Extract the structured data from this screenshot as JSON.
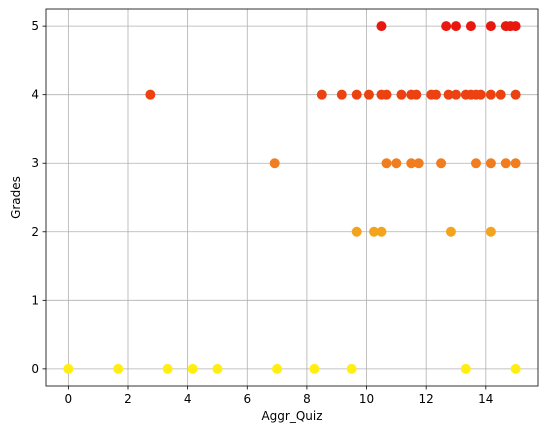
{
  "chart_data": {
    "type": "scatter",
    "xlabel": "Aggr_Quiz",
    "ylabel": "Grades",
    "xlim": [
      -0.75,
      15.75
    ],
    "ylim": [
      -0.25,
      5.25
    ],
    "xticks": [
      0,
      2,
      4,
      6,
      8,
      10,
      12,
      14
    ],
    "yticks": [
      0,
      1,
      2,
      3,
      4,
      5
    ],
    "grid": true,
    "colors": {
      "0": "#ffee0f",
      "2": "#f3a41f",
      "3": "#f07d1f",
      "4": "#ec4212",
      "5": "#e8180f"
    },
    "points": [
      {
        "x": 0.0,
        "y": 0
      },
      {
        "x": 1.67,
        "y": 0
      },
      {
        "x": 3.33,
        "y": 0
      },
      {
        "x": 4.17,
        "y": 0
      },
      {
        "x": 5.0,
        "y": 0
      },
      {
        "x": 7.0,
        "y": 0
      },
      {
        "x": 8.25,
        "y": 0
      },
      {
        "x": 9.5,
        "y": 0
      },
      {
        "x": 13.33,
        "y": 0
      },
      {
        "x": 15.0,
        "y": 0
      },
      {
        "x": 9.67,
        "y": 2
      },
      {
        "x": 10.25,
        "y": 2
      },
      {
        "x": 10.5,
        "y": 2
      },
      {
        "x": 12.83,
        "y": 2
      },
      {
        "x": 14.17,
        "y": 2
      },
      {
        "x": 6.92,
        "y": 3
      },
      {
        "x": 10.67,
        "y": 3
      },
      {
        "x": 11.0,
        "y": 3
      },
      {
        "x": 11.5,
        "y": 3
      },
      {
        "x": 11.75,
        "y": 3
      },
      {
        "x": 12.5,
        "y": 3
      },
      {
        "x": 13.67,
        "y": 3
      },
      {
        "x": 14.17,
        "y": 3
      },
      {
        "x": 14.67,
        "y": 3
      },
      {
        "x": 15.0,
        "y": 3
      },
      {
        "x": 2.75,
        "y": 4
      },
      {
        "x": 8.5,
        "y": 4
      },
      {
        "x": 9.17,
        "y": 4
      },
      {
        "x": 9.67,
        "y": 4
      },
      {
        "x": 10.08,
        "y": 4
      },
      {
        "x": 10.5,
        "y": 4
      },
      {
        "x": 10.67,
        "y": 4
      },
      {
        "x": 11.17,
        "y": 4
      },
      {
        "x": 11.5,
        "y": 4
      },
      {
        "x": 11.67,
        "y": 4
      },
      {
        "x": 12.17,
        "y": 4
      },
      {
        "x": 12.33,
        "y": 4
      },
      {
        "x": 12.75,
        "y": 4
      },
      {
        "x": 13.0,
        "y": 4
      },
      {
        "x": 13.33,
        "y": 4
      },
      {
        "x": 13.5,
        "y": 4
      },
      {
        "x": 13.67,
        "y": 4
      },
      {
        "x": 13.83,
        "y": 4
      },
      {
        "x": 14.17,
        "y": 4
      },
      {
        "x": 14.5,
        "y": 4
      },
      {
        "x": 15.0,
        "y": 4
      },
      {
        "x": 10.5,
        "y": 5
      },
      {
        "x": 12.67,
        "y": 5
      },
      {
        "x": 13.0,
        "y": 5
      },
      {
        "x": 13.5,
        "y": 5
      },
      {
        "x": 14.17,
        "y": 5
      },
      {
        "x": 14.67,
        "y": 5
      },
      {
        "x": 14.83,
        "y": 5
      },
      {
        "x": 15.0,
        "y": 5
      }
    ]
  }
}
